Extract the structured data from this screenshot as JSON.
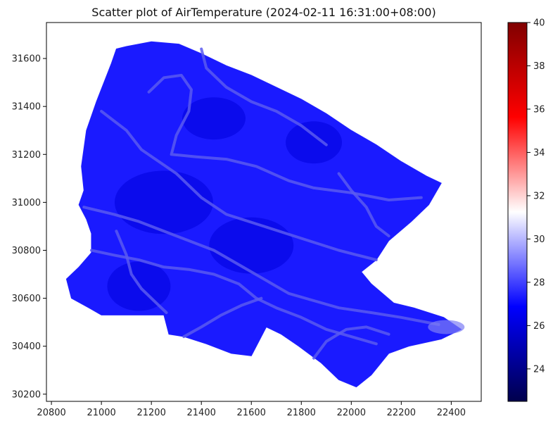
{
  "chart_data": {
    "type": "scatter",
    "title": "Scatter plot of AirTemperature (2024-02-11 16:31:00+08:00)",
    "xlabel": "",
    "ylabel": "",
    "xlim": [
      20780,
      22520
    ],
    "ylim": [
      30170,
      31750
    ],
    "x_ticks": [
      20800,
      21000,
      21200,
      21400,
      21600,
      21800,
      22000,
      22200,
      22400
    ],
    "y_ticks": [
      30200,
      30400,
      30600,
      30800,
      31000,
      31200,
      31400,
      31600
    ],
    "x_tick_labels": [
      "20800",
      "21000",
      "21200",
      "21400",
      "21600",
      "21800",
      "22000",
      "22200",
      "22400"
    ],
    "y_tick_labels": [
      "30200",
      "30400",
      "30600",
      "30800",
      "31000",
      "31200",
      "31400",
      "31600"
    ],
    "grid": false,
    "colormap": "seismic",
    "colorbar": {
      "min": 22.5,
      "max": 40,
      "ticks": [
        24,
        26,
        28,
        30,
        32,
        34,
        36,
        38,
        40
      ],
      "tick_labels": [
        "24",
        "26",
        "28",
        "30",
        "32",
        "34",
        "36",
        "38",
        "40"
      ],
      "stops": [
        "#00004c",
        "#0000ff",
        "#ffffff",
        "#ff0000",
        "#800000"
      ]
    },
    "value_range_shown": [
      25.8,
      27.8
    ],
    "region_outline": [
      [
        21060,
        31640
      ],
      [
        21100,
        31650
      ],
      [
        21200,
        31670
      ],
      [
        21310,
        31660
      ],
      [
        21400,
        31620
      ],
      [
        21500,
        31570
      ],
      [
        21600,
        31530
      ],
      [
        21700,
        31480
      ],
      [
        21800,
        31430
      ],
      [
        21900,
        31370
      ],
      [
        22000,
        31300
      ],
      [
        22100,
        31240
      ],
      [
        22200,
        31170
      ],
      [
        22300,
        31110
      ],
      [
        22360,
        31080
      ],
      [
        22310,
        30990
      ],
      [
        22240,
        30920
      ],
      [
        22150,
        30840
      ],
      [
        22100,
        30760
      ],
      [
        22040,
        30710
      ],
      [
        22080,
        30660
      ],
      [
        22170,
        30580
      ],
      [
        22250,
        30560
      ],
      [
        22370,
        30520
      ],
      [
        22440,
        30470
      ],
      [
        22360,
        30430
      ],
      [
        22230,
        30400
      ],
      [
        22150,
        30370
      ],
      [
        22080,
        30280
      ],
      [
        22020,
        30230
      ],
      [
        21950,
        30260
      ],
      [
        21880,
        30330
      ],
      [
        21790,
        30400
      ],
      [
        21720,
        30450
      ],
      [
        21660,
        30480
      ],
      [
        21630,
        30420
      ],
      [
        21600,
        30360
      ],
      [
        21520,
        30370
      ],
      [
        21420,
        30410
      ],
      [
        21330,
        30440
      ],
      [
        21270,
        30450
      ],
      [
        21250,
        30530
      ],
      [
        21150,
        30530
      ],
      [
        21000,
        30530
      ],
      [
        20950,
        30560
      ],
      [
        20880,
        30600
      ],
      [
        20860,
        30680
      ],
      [
        20910,
        30730
      ],
      [
        20960,
        30790
      ],
      [
        20960,
        30870
      ],
      [
        20940,
        30930
      ],
      [
        20910,
        30990
      ],
      [
        20930,
        31050
      ],
      [
        20920,
        31150
      ],
      [
        20940,
        31300
      ],
      [
        20980,
        31420
      ],
      [
        21010,
        31500
      ],
      [
        21040,
        31580
      ]
    ],
    "road_lines": [
      [
        [
          21000,
          31380
        ],
        [
          21100,
          31300
        ],
        [
          21160,
          31220
        ],
        [
          21300,
          31120
        ],
        [
          21400,
          31020
        ],
        [
          21500,
          30950
        ],
        [
          21650,
          30900
        ],
        [
          21800,
          30850
        ],
        [
          21950,
          30800
        ],
        [
          22100,
          30760
        ]
      ],
      [
        [
          20930,
          30980
        ],
        [
          21050,
          30950
        ],
        [
          21150,
          30920
        ],
        [
          21250,
          30880
        ],
        [
          21350,
          30840
        ],
        [
          21450,
          30800
        ],
        [
          21550,
          30740
        ],
        [
          21650,
          30680
        ],
        [
          21750,
          30620
        ],
        [
          21850,
          30590
        ],
        [
          21950,
          30560
        ],
        [
          22080,
          30540
        ],
        [
          22200,
          30520
        ],
        [
          22350,
          30490
        ]
      ],
      [
        [
          21190,
          31460
        ],
        [
          21250,
          31520
        ],
        [
          21320,
          31530
        ],
        [
          21360,
          31470
        ],
        [
          21350,
          31380
        ],
        [
          21300,
          31280
        ],
        [
          21280,
          31200
        ],
        [
          21380,
          31190
        ],
        [
          21500,
          31180
        ],
        [
          21620,
          31150
        ],
        [
          21750,
          31090
        ],
        [
          21850,
          31060
        ],
        [
          22000,
          31040
        ],
        [
          22150,
          31010
        ],
        [
          22280,
          31020
        ]
      ],
      [
        [
          20960,
          30800
        ],
        [
          21050,
          30780
        ],
        [
          21150,
          30760
        ],
        [
          21250,
          30730
        ],
        [
          21350,
          30720
        ],
        [
          21450,
          30700
        ],
        [
          21550,
          30660
        ],
        [
          21620,
          30600
        ],
        [
          21700,
          30560
        ],
        [
          21800,
          30520
        ],
        [
          21900,
          30470
        ],
        [
          22000,
          30440
        ],
        [
          22100,
          30410
        ]
      ],
      [
        [
          21060,
          30880
        ],
        [
          21100,
          30780
        ],
        [
          21120,
          30700
        ],
        [
          21160,
          30640
        ],
        [
          21220,
          30580
        ],
        [
          21260,
          30540
        ]
      ],
      [
        [
          21400,
          31640
        ],
        [
          21420,
          31560
        ],
        [
          21500,
          31480
        ],
        [
          21600,
          31420
        ],
        [
          21700,
          31380
        ],
        [
          21800,
          31320
        ],
        [
          21900,
          31240
        ]
      ],
      [
        [
          21330,
          30440
        ],
        [
          21400,
          30480
        ],
        [
          21480,
          30530
        ],
        [
          21560,
          30570
        ],
        [
          21640,
          30600
        ]
      ],
      [
        [
          21850,
          30350
        ],
        [
          21900,
          30420
        ],
        [
          21980,
          30470
        ],
        [
          22060,
          30480
        ],
        [
          22150,
          30450
        ]
      ],
      [
        [
          21950,
          31120
        ],
        [
          22000,
          31050
        ],
        [
          22060,
          30980
        ],
        [
          22100,
          30900
        ],
        [
          22150,
          30860
        ]
      ]
    ]
  }
}
